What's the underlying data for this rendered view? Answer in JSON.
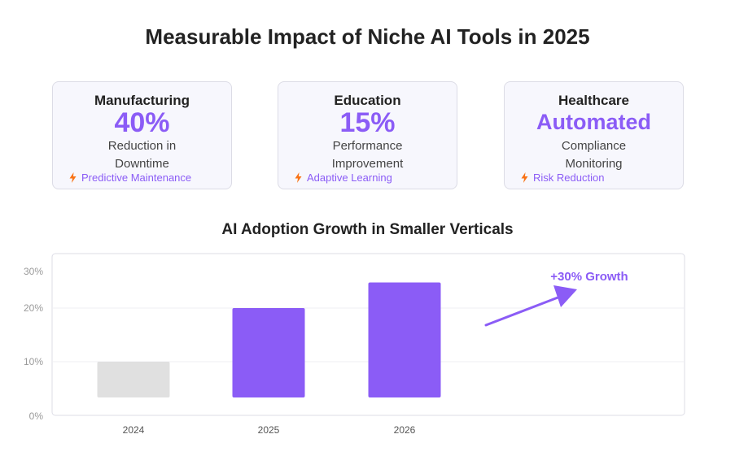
{
  "title": "Measurable Impact of Niche AI Tools in 2025",
  "colors": {
    "accent": "#8b5cf6",
    "muted_bar": "#e0e0e0",
    "tag_icon": "#f97316"
  },
  "cards": [
    {
      "title": "Manufacturing",
      "value": "40%",
      "desc1": "Reduction in",
      "desc2": "Downtime",
      "tag": "Predictive Maintenance",
      "tag_icon": "lightning-bolt-icon"
    },
    {
      "title": "Education",
      "value": "15%",
      "desc1": "Performance",
      "desc2": "Improvement",
      "tag": "Adaptive Learning",
      "tag_icon": "lightning-bolt-icon"
    },
    {
      "title": "Healthcare",
      "value": "Automated",
      "desc1": "Compliance",
      "desc2": "Monitoring",
      "tag": "Risk Reduction",
      "tag_icon": "lightning-bolt-icon"
    }
  ],
  "chart_data": {
    "type": "bar",
    "title": "AI Adoption Growth in Smaller Verticals",
    "categories": [
      "2024",
      "2025",
      "2026"
    ],
    "values": [
      10,
      20,
      27
    ],
    "colors": [
      "#e0e0e0",
      "#8b5cf6",
      "#8b5cf6"
    ],
    "yticks": [
      {
        "value": 0,
        "label": "0%"
      },
      {
        "value": 10,
        "label": "10%"
      },
      {
        "value": 20,
        "label": "20%"
      },
      {
        "value": 30,
        "label": "30%"
      }
    ],
    "ylim": [
      0,
      30
    ],
    "grid": true,
    "annotation": {
      "text": "+30% Growth",
      "arrow": true
    }
  }
}
